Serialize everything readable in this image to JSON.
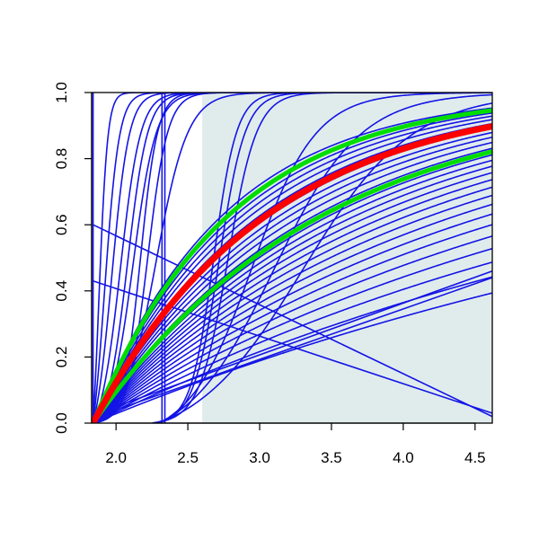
{
  "chart_data": {
    "type": "line",
    "title": "",
    "xlabel": "",
    "ylabel": "",
    "xlim": [
      1.83,
      4.62
    ],
    "ylim": [
      0.0,
      1.0
    ],
    "x_ticks": [
      2.0,
      2.5,
      3.0,
      3.5,
      4.0,
      4.5
    ],
    "x_tick_labels": [
      "2.0",
      "2.5",
      "3.0",
      "3.5",
      "4.0",
      "4.5"
    ],
    "y_ticks": [
      0.0,
      0.2,
      0.4,
      0.6,
      0.8,
      1.0
    ],
    "y_tick_labels": [
      "0.0",
      "0.2",
      "0.4",
      "0.6",
      "0.8",
      "1.0"
    ],
    "shaded_region": {
      "x": [
        2.6,
        4.62
      ],
      "y": [
        0.0,
        1.0
      ],
      "color": "#e0ecec"
    },
    "grid": false,
    "legend": "none",
    "colors": {
      "bundle": "#1414e6",
      "central": "#ff0000",
      "bounds": "#00dd00",
      "shade": "#e0ecec"
    },
    "series_groups": [
      {
        "role": "blue-bundle",
        "color": "#1414e6",
        "description_of_shape": "many cumulative curves"
      },
      {
        "role": "red-central",
        "color": "#ff0000"
      },
      {
        "role": "green-bounds",
        "color": "#00dd00"
      }
    ],
    "series": [
      {
        "color": "#1414e6",
        "kind": "line",
        "x": [
          1.84,
          4.62
        ],
        "y": [
          0.6,
          0.02
        ]
      },
      {
        "color": "#1414e6",
        "kind": "line",
        "x": [
          1.84,
          4.62
        ],
        "y": [
          0.43,
          0.03
        ]
      },
      {
        "color": "#1414e6",
        "kind": "line",
        "x": [
          2.0,
          4.62
        ],
        "y": [
          0.05,
          0.46
        ]
      },
      {
        "color": "#1414e6",
        "kind": "line",
        "x": [
          2.0,
          4.62
        ],
        "y": [
          0.04,
          0.44
        ]
      },
      {
        "color": "#1414e6",
        "kind": "vline",
        "x": [
          1.84,
          1.84
        ],
        "y": [
          0.0,
          1.0
        ]
      },
      {
        "color": "#1414e6",
        "kind": "vline",
        "x": [
          2.32,
          2.32
        ],
        "y": [
          0.0,
          1.0
        ]
      },
      {
        "color": "#1414e6",
        "kind": "vline",
        "x": [
          2.34,
          2.34
        ],
        "y": [
          0.0,
          1.0
        ]
      },
      {
        "color": "#1414e6",
        "kind": "logistic",
        "start": 1.84,
        "mid": 1.88,
        "scale": 0.03
      },
      {
        "color": "#1414e6",
        "kind": "logistic",
        "start": 1.84,
        "mid": 1.92,
        "scale": 0.05
      },
      {
        "color": "#1414e6",
        "kind": "logistic",
        "start": 1.84,
        "mid": 1.97,
        "scale": 0.06
      },
      {
        "color": "#1414e6",
        "kind": "logistic",
        "start": 1.84,
        "mid": 2.03,
        "scale": 0.07
      },
      {
        "color": "#1414e6",
        "kind": "logistic",
        "start": 1.84,
        "mid": 2.08,
        "scale": 0.07
      },
      {
        "color": "#1414e6",
        "kind": "logistic",
        "start": 1.84,
        "mid": 2.12,
        "scale": 0.08
      },
      {
        "color": "#1414e6",
        "kind": "logistic",
        "start": 1.84,
        "mid": 2.17,
        "scale": 0.06
      },
      {
        "color": "#1414e6",
        "kind": "logistic",
        "start": 1.84,
        "mid": 2.22,
        "scale": 0.07
      },
      {
        "color": "#1414e6",
        "kind": "logistic",
        "start": 1.84,
        "mid": 2.28,
        "scale": 0.11
      },
      {
        "color": "#1414e6",
        "kind": "logistic",
        "start": 2.25,
        "mid": 2.68,
        "scale": 0.08
      },
      {
        "color": "#1414e6",
        "kind": "logistic",
        "start": 2.25,
        "mid": 2.72,
        "scale": 0.09
      },
      {
        "color": "#1414e6",
        "kind": "logistic",
        "start": 2.25,
        "mid": 2.78,
        "scale": 0.1
      },
      {
        "color": "#1414e6",
        "kind": "logistic",
        "start": 2.3,
        "mid": 2.95,
        "scale": 0.22
      },
      {
        "color": "#1414e6",
        "kind": "logistic",
        "start": 2.3,
        "mid": 3.1,
        "scale": 0.3
      },
      {
        "color": "#1414e6",
        "kind": "logistic",
        "start": 2.3,
        "mid": 3.3,
        "scale": 0.38
      },
      {
        "color": "#1414e6",
        "kind": "cdf",
        "k": 1.1
      },
      {
        "color": "#1414e6",
        "kind": "cdf",
        "k": 1.0
      },
      {
        "color": "#1414e6",
        "kind": "cdf",
        "k": 0.95
      },
      {
        "color": "#1414e6",
        "kind": "cdf",
        "k": 0.9
      },
      {
        "color": "#1414e6",
        "kind": "cdf",
        "k": 0.85
      },
      {
        "color": "#1414e6",
        "kind": "cdf",
        "k": 0.8
      },
      {
        "color": "#1414e6",
        "kind": "cdf",
        "k": 0.76
      },
      {
        "color": "#1414e6",
        "kind": "cdf",
        "k": 0.72
      },
      {
        "color": "#1414e6",
        "kind": "cdf",
        "k": 0.68
      },
      {
        "color": "#1414e6",
        "kind": "cdf",
        "k": 0.64
      },
      {
        "color": "#1414e6",
        "kind": "cdf",
        "k": 0.6
      },
      {
        "color": "#1414e6",
        "kind": "cdf",
        "k": 0.57
      },
      {
        "color": "#1414e6",
        "kind": "cdf",
        "k": 0.54
      },
      {
        "color": "#1414e6",
        "kind": "cdf",
        "k": 0.51
      },
      {
        "color": "#1414e6",
        "kind": "cdf",
        "k": 0.48
      },
      {
        "color": "#1414e6",
        "kind": "cdf",
        "k": 0.45
      },
      {
        "color": "#1414e6",
        "kind": "cdf",
        "k": 0.42
      },
      {
        "color": "#1414e6",
        "kind": "cdf",
        "k": 0.39
      },
      {
        "color": "#1414e6",
        "kind": "cdf",
        "k": 0.36
      },
      {
        "color": "#1414e6",
        "kind": "cdf",
        "k": 0.33
      },
      {
        "color": "#1414e6",
        "kind": "cdf",
        "k": 0.3
      },
      {
        "color": "#1414e6",
        "kind": "cdf",
        "k": 0.27
      },
      {
        "color": "#1414e6",
        "kind": "cdf",
        "k": 0.24
      },
      {
        "color": "#1414e6",
        "kind": "cdf",
        "k": 0.21
      },
      {
        "color": "#1414e6",
        "kind": "cdf",
        "k": 0.18
      },
      {
        "color": "#00dd00",
        "kind": "cdf",
        "k": 1.05,
        "width": 5
      },
      {
        "color": "#00dd00",
        "kind": "cdf",
        "k": 0.62,
        "width": 5
      },
      {
        "color": "#ff0000",
        "kind": "cdf",
        "k": 0.82,
        "width": 7
      }
    ]
  }
}
